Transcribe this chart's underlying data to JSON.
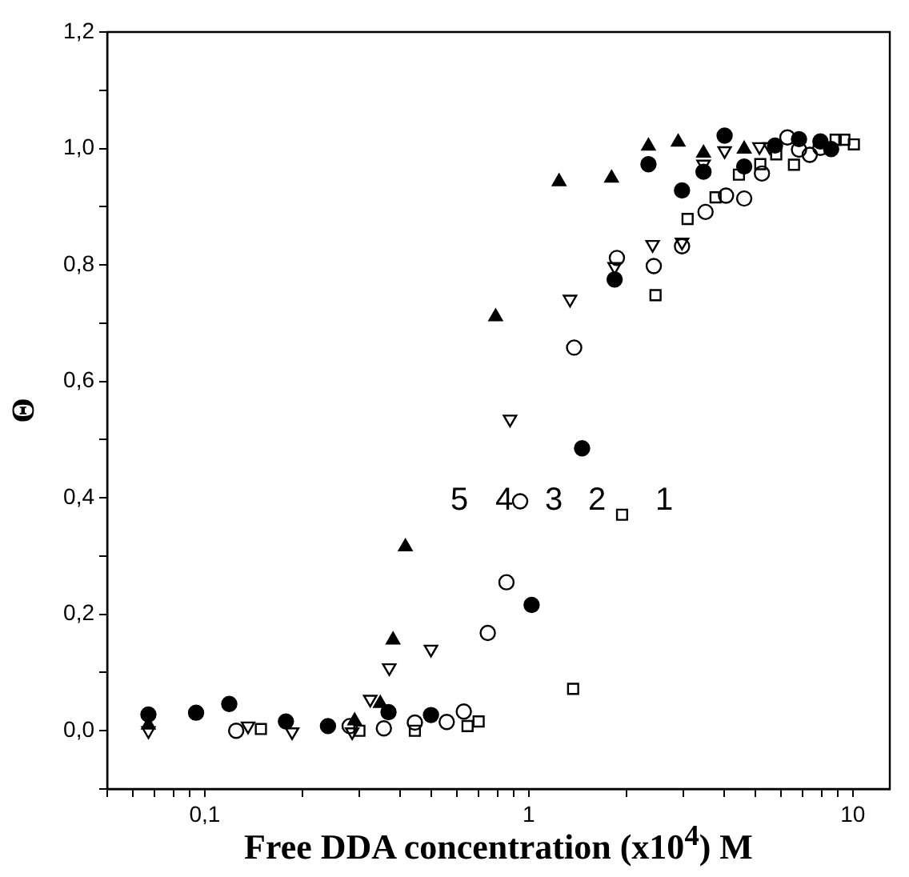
{
  "chart_data": {
    "type": "scatter",
    "xlabel": "Free DDA concentration (x10$^{4}$) M",
    "ylabel": "Θ",
    "log": "x",
    "grid": false,
    "legend": false,
    "xlim": [
      0.05,
      13
    ],
    "ylim": [
      -0.1,
      1.2
    ],
    "xticks": [
      {
        "value": 0.05,
        "label": null
      },
      {
        "value": 0.06,
        "label": null
      },
      {
        "value": 0.07,
        "label": null
      },
      {
        "value": 0.08,
        "label": null
      },
      {
        "value": 0.09,
        "label": null
      },
      {
        "value": 0.1,
        "label": "0,1"
      },
      {
        "value": 0.2,
        "label": null
      },
      {
        "value": 0.3,
        "label": null
      },
      {
        "value": 0.4,
        "label": null
      },
      {
        "value": 0.5,
        "label": null
      },
      {
        "value": 0.6,
        "label": null
      },
      {
        "value": 0.7,
        "label": null
      },
      {
        "value": 0.8,
        "label": null
      },
      {
        "value": 0.9,
        "label": null
      },
      {
        "value": 1,
        "label": "1"
      },
      {
        "value": 2,
        "label": null
      },
      {
        "value": 3,
        "label": null
      },
      {
        "value": 4,
        "label": null
      },
      {
        "value": 5,
        "label": null
      },
      {
        "value": 6,
        "label": null
      },
      {
        "value": 7,
        "label": null
      },
      {
        "value": 8,
        "label": null
      },
      {
        "value": 9,
        "label": null
      },
      {
        "value": 10,
        "label": "10"
      }
    ],
    "yticks": [
      {
        "value": -0.1,
        "label": null
      },
      {
        "value": 0,
        "label": "0,0"
      },
      {
        "value": 0.1,
        "label": null
      },
      {
        "value": 0.2,
        "label": "0,2"
      },
      {
        "value": 0.3,
        "label": null
      },
      {
        "value": 0.4,
        "label": "0,4"
      },
      {
        "value": 0.5,
        "label": null
      },
      {
        "value": 0.6,
        "label": "0,6"
      },
      {
        "value": 0.7,
        "label": null
      },
      {
        "value": 0.8,
        "label": "0,8"
      },
      {
        "value": 0.9,
        "label": null
      },
      {
        "value": 1.0,
        "label": "1,0"
      },
      {
        "value": 1.1,
        "label": null
      },
      {
        "value": 1.2,
        "label": "1,2"
      }
    ],
    "annotations": [
      "5",
      "4",
      "3",
      "2",
      "1"
    ],
    "series": [
      {
        "color": "#000000",
        "marker": "square",
        "x": [
          0.149,
          0.3,
          0.445,
          0.647,
          0.7,
          1.37,
          1.94,
          2.46,
          3.09,
          3.77,
          4.45,
          5.18,
          5.8,
          6.58,
          8.85,
          9.41,
          10.07
        ],
        "values": [
          0.003,
          0.0,
          0.0,
          0.008,
          0.016,
          0.072,
          0.371,
          0.748,
          0.879,
          0.916,
          0.955,
          0.973,
          0.99,
          0.972,
          1.015,
          1.015,
          1.007
        ]
      },
      {
        "color": "#000000",
        "marker": "circle",
        "x": [
          0.067,
          0.094,
          0.119,
          0.178,
          0.24,
          0.369,
          0.499,
          1.02,
          1.46,
          1.84,
          2.34,
          2.97,
          3.46,
          4.02,
          4.62,
          5.75,
          6.82,
          7.94,
          8.57
        ],
        "values": [
          0.028,
          0.031,
          0.046,
          0.016,
          0.008,
          0.032,
          0.027,
          0.216,
          0.485,
          0.775,
          0.973,
          0.928,
          0.96,
          1.022,
          0.969,
          1.005,
          1.016,
          1.012,
          0.999
        ]
      },
      {
        "color": "#000000",
        "marker": "circle",
        "x": [
          0.125,
          0.28,
          0.357,
          0.445,
          0.558,
          0.63,
          0.747,
          0.853,
          0.94,
          1.38,
          1.87,
          2.43,
          2.97,
          3.51,
          4.06,
          4.62,
          5.24,
          6.28,
          6.82,
          7.36,
          7.94
        ],
        "values": [
          0.0,
          0.008,
          0.004,
          0.014,
          0.015,
          0.033,
          0.168,
          0.255,
          0.394,
          0.658,
          0.812,
          0.798,
          0.832,
          0.891,
          0.919,
          0.914,
          0.957,
          1.019,
          0.998,
          0.989,
          1.001
        ]
      },
      {
        "color": "#000000",
        "marker": "triangle",
        "x": [
          0.067,
          0.136,
          0.186,
          0.285,
          0.324,
          0.371,
          0.499,
          0.875,
          1.34,
          1.84,
          2.41,
          2.97,
          3.46,
          4.02,
          5.15,
          5.54
        ],
        "values": [
          0.0,
          0.008,
          -0.002,
          -0.002,
          0.054,
          0.108,
          0.14,
          0.535,
          0.741,
          0.797,
          0.835,
          0.839,
          0.973,
          0.996,
          1.003,
          1.003
        ]
      },
      {
        "color": "#000000",
        "marker": "triangle",
        "x": [
          0.067,
          0.29,
          0.348,
          0.381,
          0.416,
          0.79,
          1.24,
          1.8,
          2.34,
          2.89,
          3.46,
          4.62
        ],
        "values": [
          0.01,
          0.017,
          0.047,
          0.156,
          0.316,
          0.711,
          0.943,
          0.949,
          1.004,
          1.011,
          0.992,
          0.999
        ]
      }
    ]
  }
}
